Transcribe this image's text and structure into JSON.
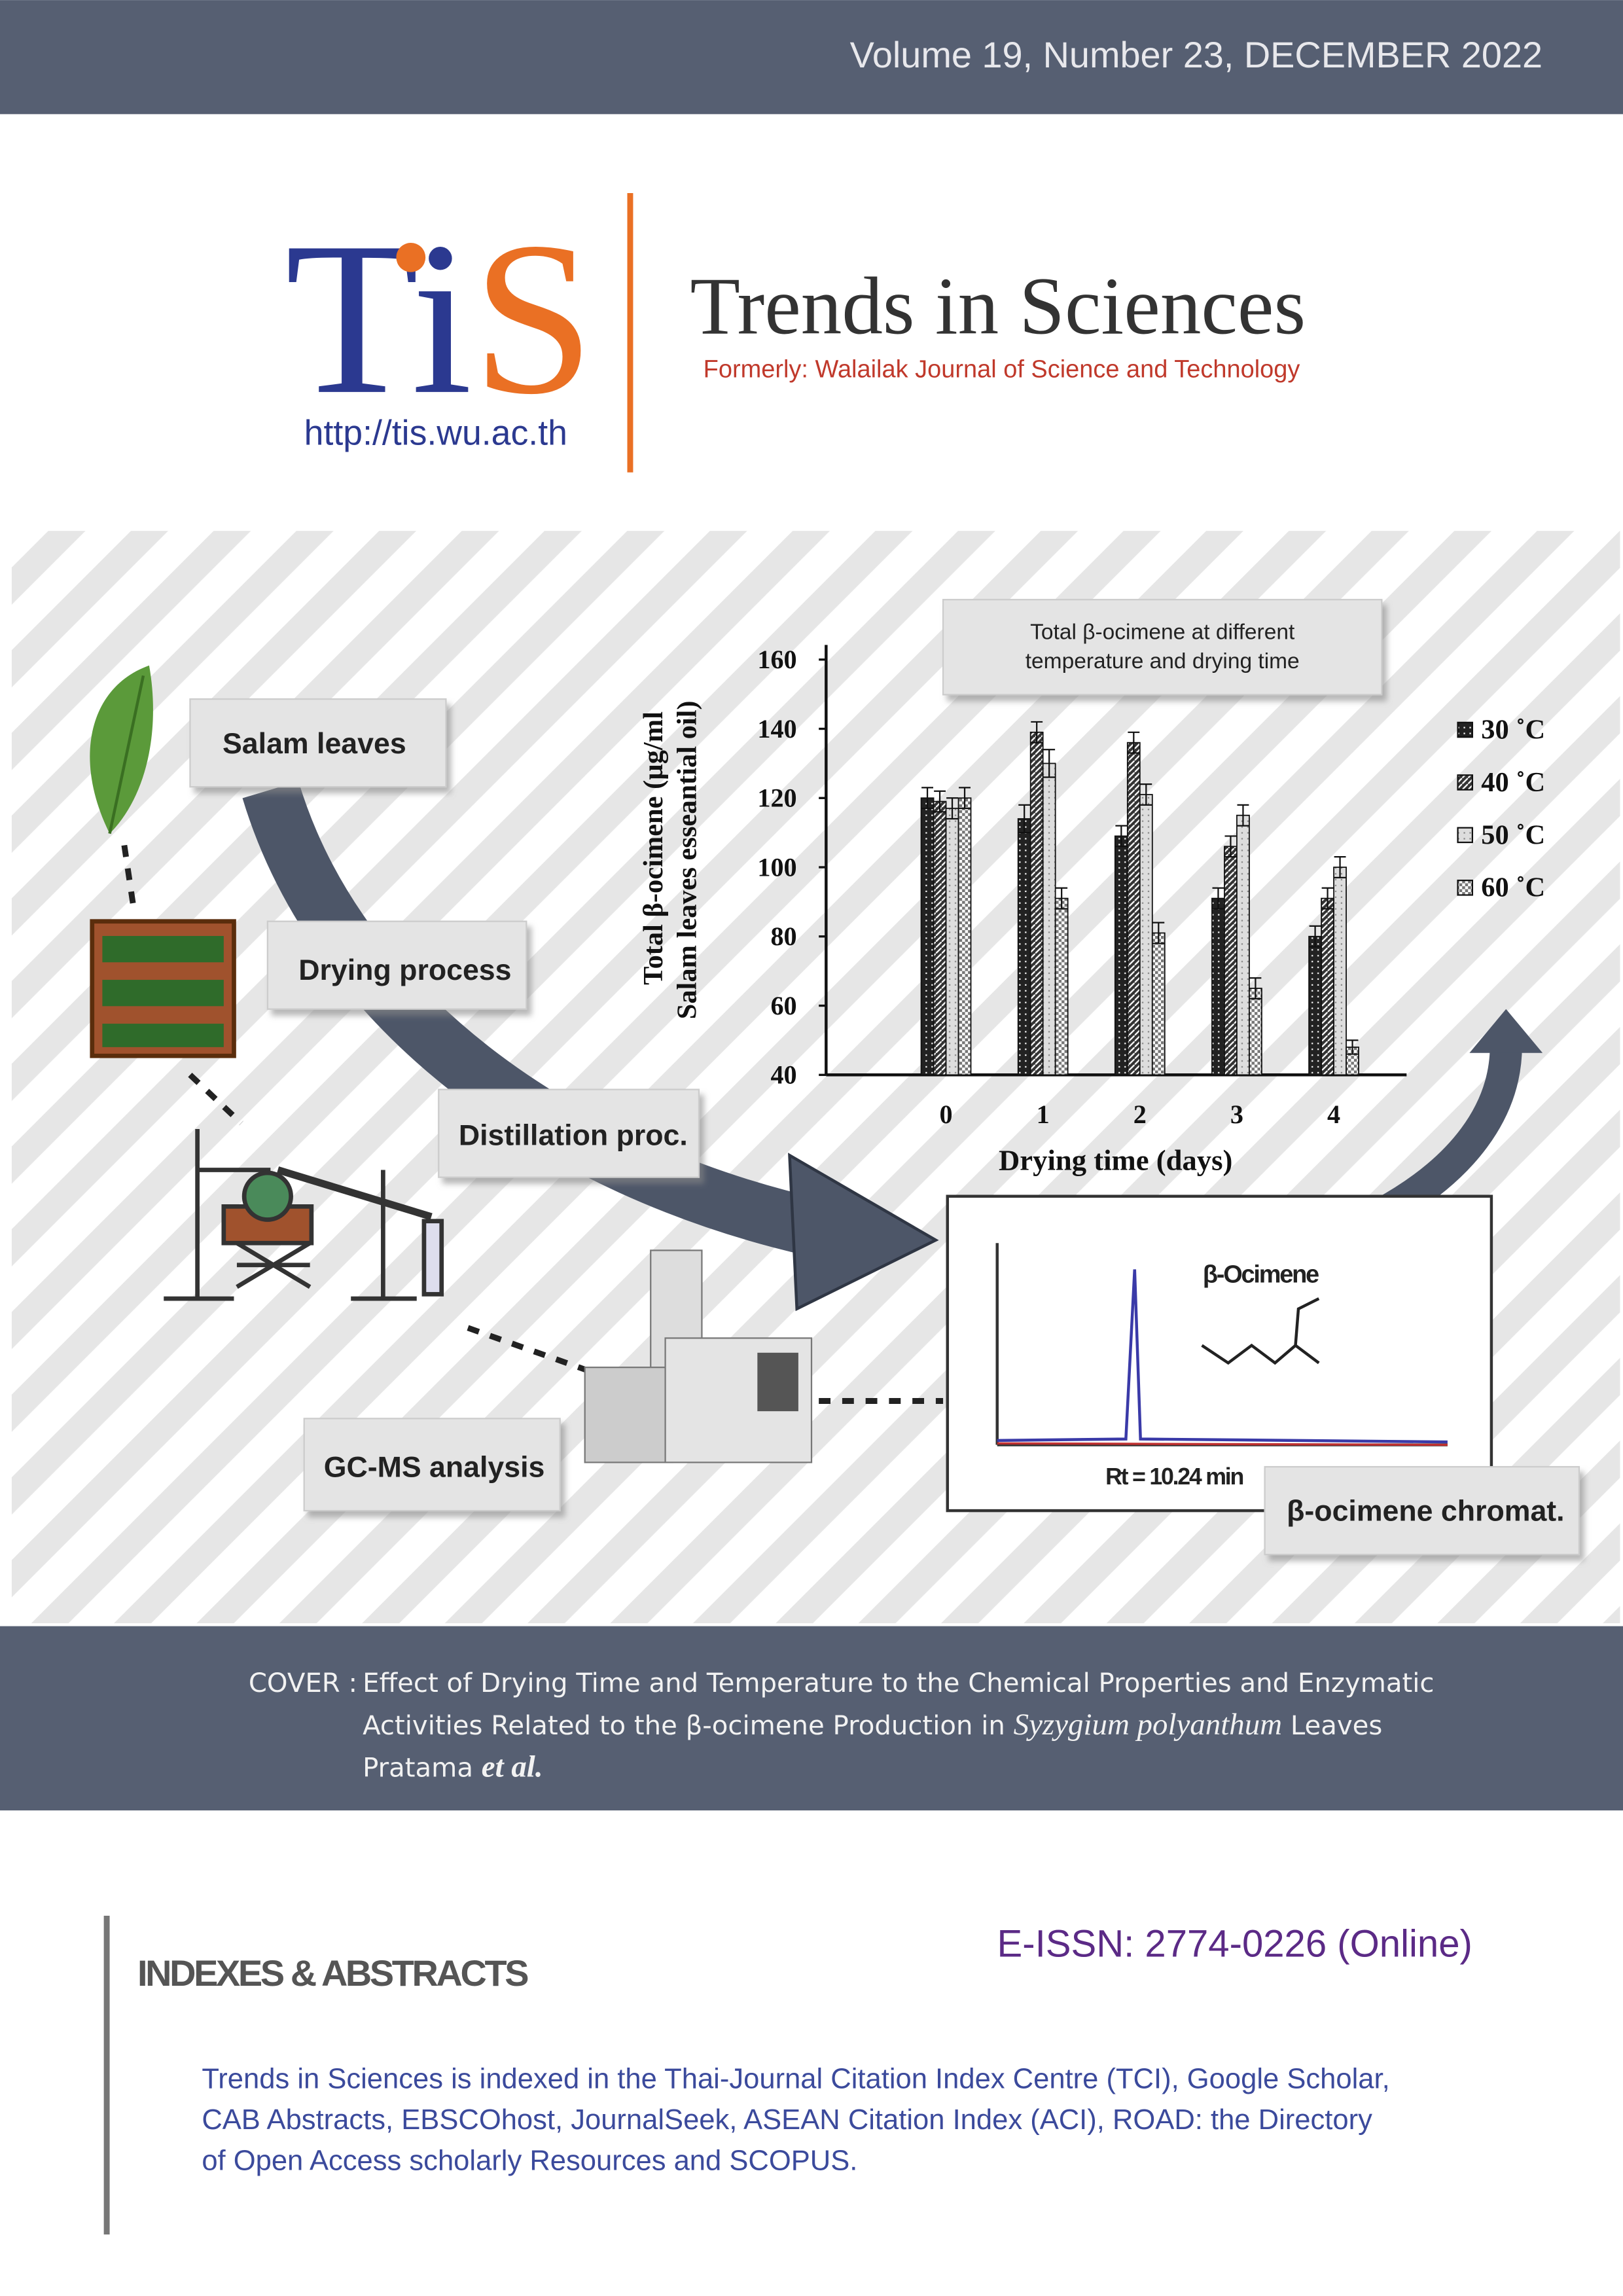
{
  "header": {
    "issue": "Volume 19, Number 23,  DECEMBER  2022"
  },
  "masthead": {
    "logo": {
      "first": "Ti",
      "second": "S"
    },
    "url": "http://tis.wu.ac.th",
    "title": "Trends in Sciences",
    "formerly": "Formerly: Walailak Journal of Science and Technology"
  },
  "figure": {
    "steps": {
      "leaves": "Salam leaves",
      "drying": "Drying process",
      "distillation": "Distillation proc.",
      "gcms": "GC-MS analysis",
      "chromat": "β-ocimene chromat."
    },
    "chromatogram": {
      "peak": "β-Ocimene",
      "retention": "Rt = 10.24 min"
    },
    "chart": {
      "type": "bar",
      "title": [
        "Total β-ocimene at different",
        "temperature and drying time"
      ],
      "y_label": [
        "Total β-ocimene  (µg/ml",
        "Salam leaves esseantial oil)"
      ],
      "x_label": "Drying time (days)",
      "categories": [
        "0",
        "1",
        "2",
        "3",
        "4"
      ],
      "ylim": [
        40,
        160
      ],
      "yticks": [
        40,
        60,
        80,
        100,
        120,
        140,
        160
      ],
      "series": [
        {
          "name": "30 ˚C",
          "color": "#222222",
          "values": [
            120,
            114,
            109,
            91,
            80
          ],
          "errors": [
            3,
            4,
            3,
            3,
            3
          ]
        },
        {
          "name": "40 ˚C",
          "color": "#333333",
          "values": [
            119,
            139,
            136,
            106,
            91
          ],
          "errors": [
            3,
            3,
            3,
            3,
            3
          ]
        },
        {
          "name": "50 ˚C",
          "color": "#dddddd",
          "values": [
            117,
            130,
            121,
            115,
            100
          ],
          "errors": [
            3,
            4,
            3,
            3,
            3
          ]
        },
        {
          "name": "60 ˚C",
          "color": "#777777",
          "values": [
            120,
            91,
            81,
            65,
            48
          ],
          "errors": [
            3,
            3,
            3,
            3,
            2
          ]
        }
      ]
    }
  },
  "cover": {
    "label": "COVER :",
    "line1": "Effect of Drying Time and Temperature to the Chemical Properties and Enzymatic",
    "line2": "Activities Related to the β-ocimene Production in",
    "species": "Syzygium polyanthum",
    "line2_end": "Leaves",
    "author": "Pratama",
    "etal": "et al."
  },
  "indexes": {
    "heading": "INDEXES & ABSTRACTS",
    "issn": "E-ISSN: 2774-0226 (Online)",
    "text": [
      "Trends in Sciences is indexed in the Thai-Journal Citation Index Centre (TCI), Google Scholar,",
      "CAB Abstracts, EBSCOhost, JournalSeek, ASEAN Citation Index (ACI),  ROAD: the Directory",
      "of Open Access scholarly Resources and SCOPUS."
    ]
  }
}
